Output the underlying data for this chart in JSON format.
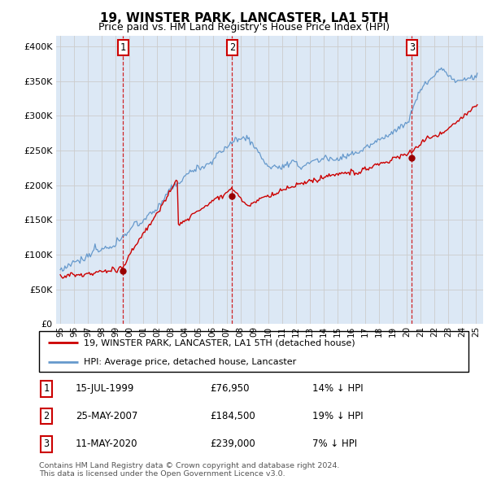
{
  "title": "19, WINSTER PARK, LANCASTER, LA1 5TH",
  "subtitle": "Price paid vs. HM Land Registry's House Price Index (HPI)",
  "ytick_values": [
    0,
    50000,
    100000,
    150000,
    200000,
    250000,
    300000,
    350000,
    400000
  ],
  "ylim": [
    0,
    415000
  ],
  "xlim_start": 1994.7,
  "xlim_end": 2025.5,
  "sales": [
    {
      "label": "1",
      "year": 1999.54,
      "price": 76950,
      "date": "15-JUL-1999",
      "hpi_diff": "14% ↓ HPI"
    },
    {
      "label": "2",
      "year": 2007.39,
      "price": 184500,
      "date": "25-MAY-2007",
      "hpi_diff": "19% ↓ HPI"
    },
    {
      "label": "3",
      "year": 2020.36,
      "price": 239000,
      "date": "11-MAY-2020",
      "hpi_diff": "7% ↓ HPI"
    }
  ],
  "line_color_red": "#cc0000",
  "line_color_blue": "#6699cc",
  "marker_box_color": "#cc0000",
  "grid_color": "#cccccc",
  "bg_color": "#dce8f5",
  "legend_label_red": "19, WINSTER PARK, LANCASTER, LA1 5TH (detached house)",
  "legend_label_blue": "HPI: Average price, detached house, Lancaster",
  "footer": "Contains HM Land Registry data © Crown copyright and database right 2024.\nThis data is licensed under the Open Government Licence v3.0.",
  "title_fontsize": 11,
  "subtitle_fontsize": 9,
  "axis_fontsize": 8
}
